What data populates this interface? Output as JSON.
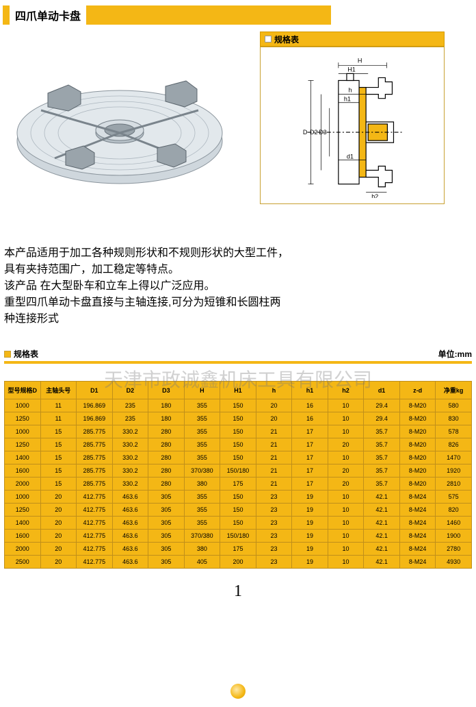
{
  "title": "四爪单动卡盘",
  "spec_label": "规格表",
  "diagram_labels": {
    "H": "H",
    "H1": "H1",
    "h": "h",
    "h1": "h1",
    "D": "D",
    "D2": "D2",
    "D3": "D3",
    "d1": "d1",
    "h2": "h2"
  },
  "description_lines": [
    "本产品适用于加工各种规则形状和不规则形状的大型工件，",
    "具有夹持范围广，加工稳定等特点。",
    "该产品 在大型卧车和立车上得以广泛应用。",
    "重型四爪单动卡盘直接与主轴连接,可分为短锥和长圆柱两",
    "种连接形式"
  ],
  "table_label": "规格表",
  "unit_label": "单位:mm",
  "watermark": "天津市政诚鑫机床工具有限公司",
  "columns": [
    "型号规格D",
    "主轴头号",
    "D1",
    "D2",
    "D3",
    "H",
    "H1",
    "h",
    "h1",
    "h2",
    "d1",
    "z-d",
    "净重kg"
  ],
  "rows": [
    [
      "1000",
      "11",
      "196.869",
      "235",
      "180",
      "355",
      "150",
      "20",
      "16",
      "10",
      "29.4",
      "8-M20",
      "580"
    ],
    [
      "1250",
      "11",
      "196.869",
      "235",
      "180",
      "355",
      "150",
      "20",
      "16",
      "10",
      "29.4",
      "8-M20",
      "830"
    ],
    [
      "1000",
      "15",
      "285.775",
      "330.2",
      "280",
      "355",
      "150",
      "21",
      "17",
      "10",
      "35.7",
      "8-M20",
      "578"
    ],
    [
      "1250",
      "15",
      "285.775",
      "330.2",
      "280",
      "355",
      "150",
      "21",
      "17",
      "20",
      "35.7",
      "8-M20",
      "826"
    ],
    [
      "1400",
      "15",
      "285.775",
      "330.2",
      "280",
      "355",
      "150",
      "21",
      "17",
      "10",
      "35.7",
      "8-M20",
      "1470"
    ],
    [
      "1600",
      "15",
      "285.775",
      "330.2",
      "280",
      "370/380",
      "150/180",
      "21",
      "17",
      "20",
      "35.7",
      "8-M20",
      "1920"
    ],
    [
      "2000",
      "15",
      "285.775",
      "330.2",
      "280",
      "380",
      "175",
      "21",
      "17",
      "20",
      "35.7",
      "8-M20",
      "2810"
    ],
    [
      "1000",
      "20",
      "412.775",
      "463.6",
      "305",
      "355",
      "150",
      "23",
      "19",
      "10",
      "42.1",
      "8-M24",
      "575"
    ],
    [
      "1250",
      "20",
      "412.775",
      "463.6",
      "305",
      "355",
      "150",
      "23",
      "19",
      "10",
      "42.1",
      "8-M24",
      "820"
    ],
    [
      "1400",
      "20",
      "412.775",
      "463.6",
      "305",
      "355",
      "150",
      "23",
      "19",
      "10",
      "42.1",
      "8-M24",
      "1460"
    ],
    [
      "1600",
      "20",
      "412.775",
      "463.6",
      "305",
      "370/380",
      "150/180",
      "23",
      "19",
      "10",
      "42.1",
      "8-M24",
      "1900"
    ],
    [
      "2000",
      "20",
      "412.775",
      "463.6",
      "305",
      "380",
      "175",
      "23",
      "19",
      "10",
      "42.1",
      "8-M24",
      "2780"
    ],
    [
      "2500",
      "20",
      "412.775",
      "463.6",
      "305",
      "405",
      "200",
      "23",
      "19",
      "10",
      "42.1",
      "8-M24",
      "4930"
    ]
  ],
  "page_number": "1",
  "colors": {
    "accent": "#f4b715",
    "border": "#c08f1a",
    "bg": "#ffffff"
  }
}
